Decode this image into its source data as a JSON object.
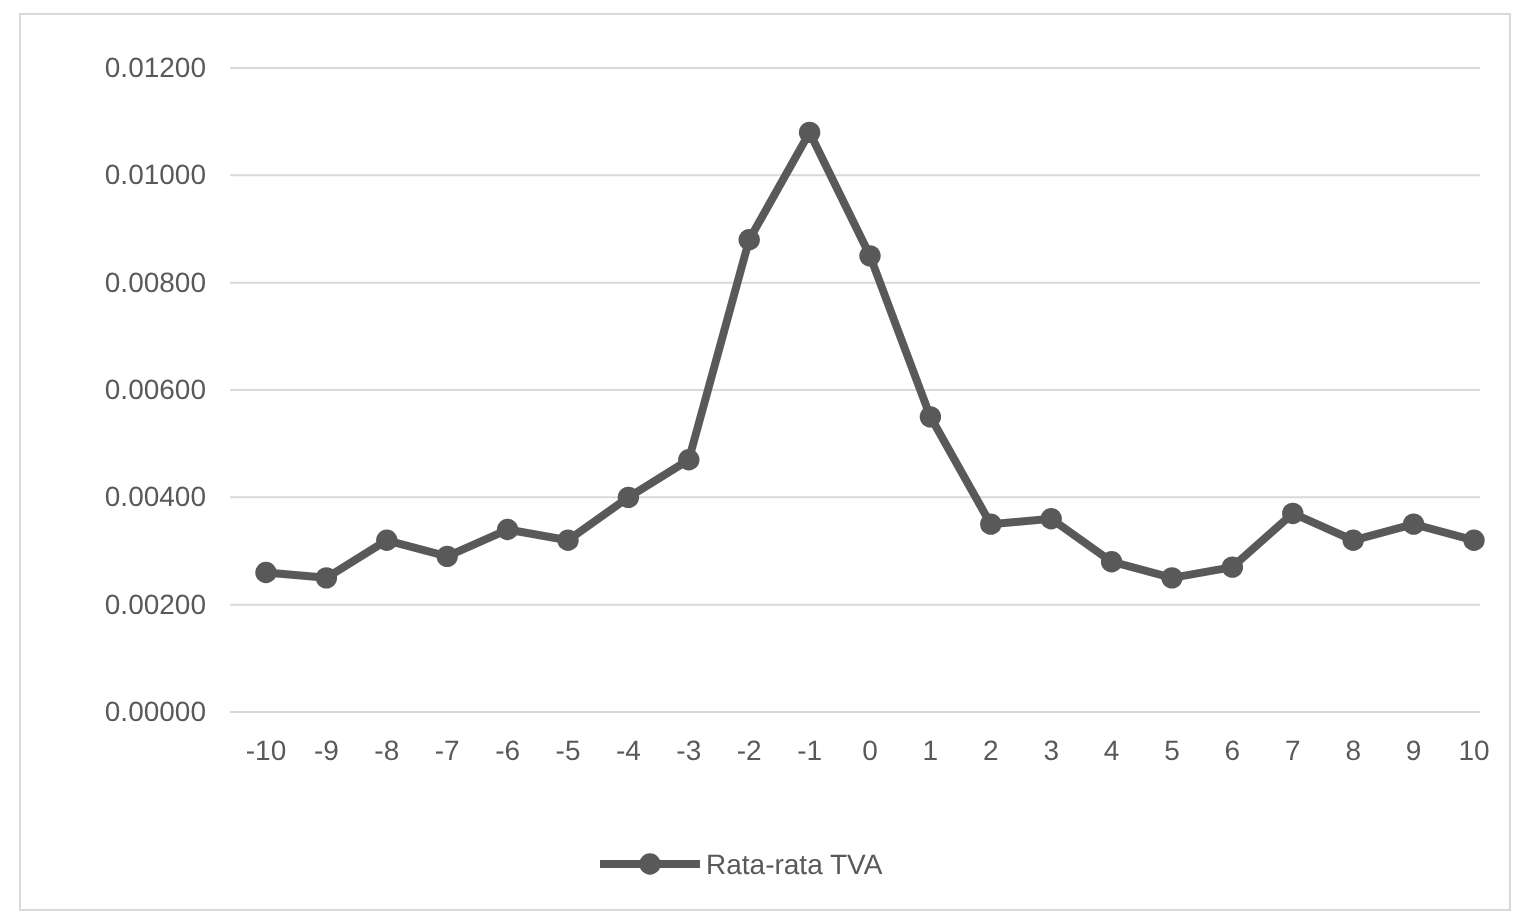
{
  "chart_data": {
    "type": "line",
    "categories": [
      "-10",
      "-9",
      "-8",
      "-7",
      "-6",
      "-5",
      "-4",
      "-3",
      "-2",
      "-1",
      "0",
      "1",
      "2",
      "3",
      "4",
      "5",
      "6",
      "7",
      "8",
      "9",
      "10"
    ],
    "series": [
      {
        "name": "Rata-rata TVA",
        "color": "#595959",
        "values": [
          0.0026,
          0.0025,
          0.0032,
          0.0029,
          0.0034,
          0.0032,
          0.004,
          0.0047,
          0.0088,
          0.0108,
          0.0085,
          0.0055,
          0.0035,
          0.0036,
          0.0028,
          0.0025,
          0.0027,
          0.0037,
          0.0032,
          0.0035,
          0.0032
        ]
      }
    ],
    "ylim": [
      0,
      0.012
    ],
    "yticks": [
      {
        "value": 0,
        "label": "0.00000"
      },
      {
        "value": 0.002,
        "label": "0.00200"
      },
      {
        "value": 0.004,
        "label": "0.00400"
      },
      {
        "value": 0.006,
        "label": "0.00600"
      },
      {
        "value": 0.008,
        "label": "0.00800"
      },
      {
        "value": 0.01,
        "label": "0.01000"
      },
      {
        "value": 0.012,
        "label": "0.01200"
      }
    ],
    "grid": "y",
    "legend": "bottom",
    "marker": "circle",
    "line_style": "solid"
  }
}
